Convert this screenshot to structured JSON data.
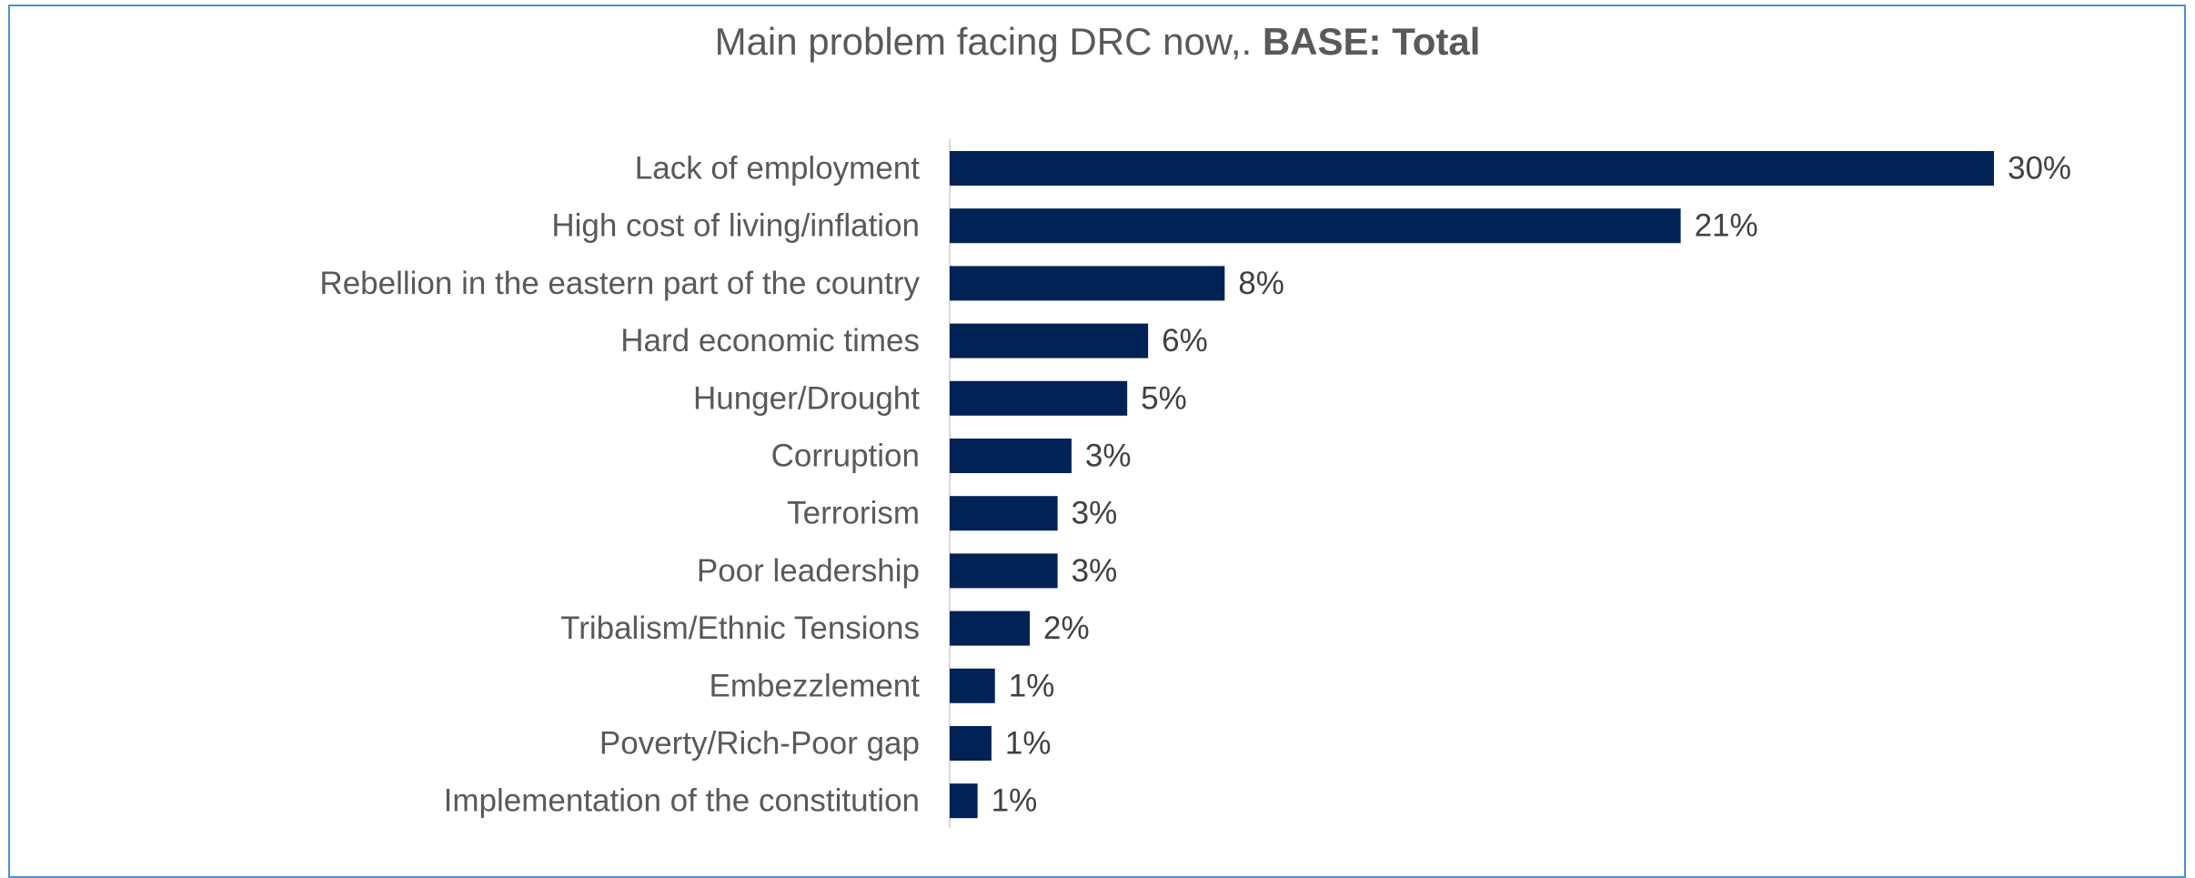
{
  "chart_data": {
    "type": "bar",
    "orientation": "horizontal",
    "title": "Main problem facing DRC now,.",
    "subtitle": "BASE: Total",
    "categories": [
      "Lack of employment",
      "High cost of living/inflation",
      "Rebellion in the eastern part of the country",
      "Hard economic times",
      "Hunger/Drought",
      "Corruption",
      "Terrorism",
      "Poor leadership",
      "Tribalism/Ethnic Tensions",
      "Embezzlement",
      "Poverty/Rich-Poor gap",
      "Implementation of the constitution"
    ],
    "values": [
      30,
      21,
      7.9,
      5.7,
      5.1,
      3.5,
      3.1,
      3.1,
      2.3,
      1.3,
      1.2,
      0.8
    ],
    "value_labels": [
      "30%",
      "21%",
      "8%",
      "6%",
      "5%",
      "3%",
      "3%",
      "3%",
      "2%",
      "1%",
      "1%",
      "1%"
    ],
    "xlim": [
      0,
      30
    ],
    "grid": false,
    "legend": "none",
    "bar_color": "#002255"
  }
}
